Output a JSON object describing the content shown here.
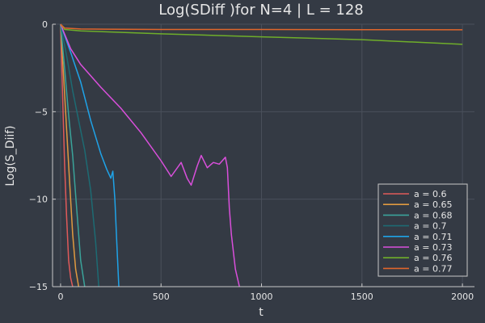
{
  "chart_data": {
    "type": "line",
    "title": "Log(SDiff )for N=4 | L = 128",
    "xlabel": "t",
    "ylabel": "Log(S_Diif)",
    "xlim": [
      -40,
      2060
    ],
    "ylim": [
      -15,
      0
    ],
    "xticks": [
      0,
      500,
      1000,
      1500,
      2000
    ],
    "yticks": [
      0,
      -5,
      -10,
      -15
    ],
    "ytick_labels": [
      "0",
      "−5",
      "−10",
      "−15"
    ],
    "grid": true,
    "legend_position": "bottom-right",
    "series": [
      {
        "name": "a = 0.6",
        "color": "#e05a5a",
        "x": [
          0,
          10,
          20,
          30,
          40,
          50,
          60
        ],
        "y": [
          0,
          -4,
          -8,
          -11,
          -13.5,
          -14.5,
          -15
        ]
      },
      {
        "name": "a = 0.65",
        "color": "#e09a40",
        "x": [
          0,
          15,
          30,
          45,
          60,
          75,
          90
        ],
        "y": [
          0,
          -3,
          -6,
          -9,
          -12,
          -14,
          -15
        ]
      },
      {
        "name": "a = 0.68",
        "color": "#3aa39a",
        "x": [
          0,
          20,
          40,
          60,
          80,
          100,
          120
        ],
        "y": [
          0,
          -2.5,
          -5.2,
          -7.5,
          -10.5,
          -13.5,
          -15
        ]
      },
      {
        "name": "a = 0.7",
        "color": "#1d6b73",
        "x": [
          0,
          30,
          60,
          90,
          120,
          150,
          175,
          190
        ],
        "y": [
          0,
          -1.8,
          -3.8,
          -5.5,
          -7.2,
          -9.5,
          -12.5,
          -15
        ]
      },
      {
        "name": "a = 0.71",
        "color": "#1fa3e8",
        "x": [
          0,
          50,
          100,
          150,
          200,
          230,
          250,
          260,
          270,
          280,
          290
        ],
        "y": [
          0,
          -1.6,
          -3.3,
          -5.5,
          -7.4,
          -8.3,
          -8.8,
          -8.4,
          -10,
          -12.5,
          -15
        ]
      },
      {
        "name": "a = 0.73",
        "color": "#d94fdb",
        "x": [
          0,
          50,
          100,
          200,
          300,
          400,
          500,
          550,
          600,
          630,
          650,
          680,
          700,
          730,
          760,
          790,
          820,
          830,
          840,
          850,
          870,
          890
        ],
        "y": [
          0,
          -1.4,
          -2.3,
          -3.6,
          -4.8,
          -6.2,
          -7.8,
          -8.7,
          -7.9,
          -8.8,
          -9.2,
          -8.1,
          -7.5,
          -8.2,
          -7.9,
          -8.0,
          -7.6,
          -8.2,
          -10.5,
          -12,
          -14,
          -15
        ]
      },
      {
        "name": "a = 0.76",
        "color": "#6fae2a",
        "x": [
          0,
          20,
          100,
          500,
          1000,
          1500,
          2000
        ],
        "y": [
          0,
          -0.3,
          -0.38,
          -0.55,
          -0.72,
          -0.88,
          -1.15
        ]
      },
      {
        "name": "a = 0.77",
        "color": "#e0662b",
        "x": [
          0,
          20,
          100,
          500,
          1000,
          1500,
          2000
        ],
        "y": [
          0,
          -0.22,
          -0.27,
          -0.3,
          -0.3,
          -0.31,
          -0.32
        ]
      }
    ]
  }
}
